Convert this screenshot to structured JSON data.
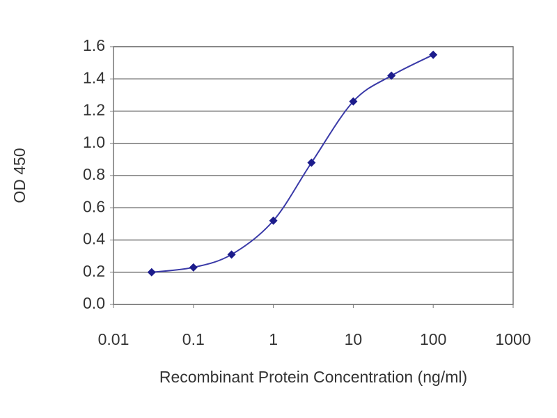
{
  "chart_data": {
    "type": "line",
    "xlabel": "Recombinant Protein Concentration (ng/ml)",
    "ylabel": "OD 450",
    "x": [
      0.03,
      0.1,
      0.3,
      1,
      3,
      10,
      30,
      100
    ],
    "series": [
      {
        "color": "#1c1c8c",
        "values": [
          0.2,
          0.23,
          0.31,
          0.52,
          0.88,
          1.26,
          1.42,
          1.55
        ]
      }
    ],
    "xlim": [
      0.01,
      1000
    ],
    "xticks": [
      0.01,
      0.1,
      1,
      10,
      100,
      1000
    ],
    "xscale": "log",
    "ylim": [
      0,
      1.6
    ],
    "yticks": [
      {
        "value": 0,
        "label": "0.0"
      },
      0.2,
      0.4,
      0.6,
      0.8,
      {
        "value": 1,
        "label": "1.0"
      },
      1.2,
      1.4,
      1.6
    ],
    "grid": true
  }
}
